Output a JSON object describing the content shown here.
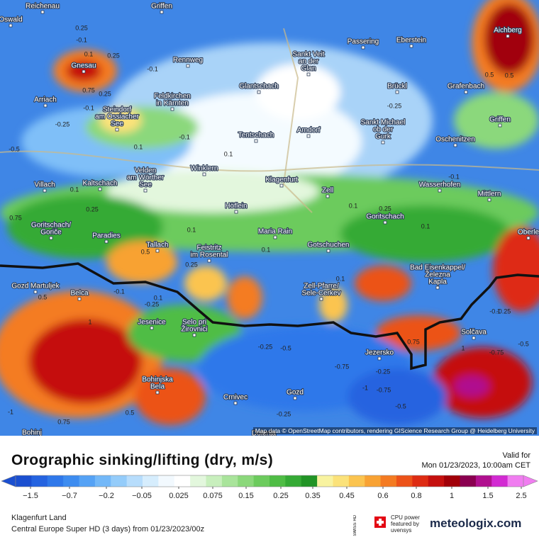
{
  "header": {
    "title": "Orographic sinking/lifting (dry, m/s)",
    "valid_label": "Valid for",
    "valid_time": "Mon 01/23/2023, 10:00am CET"
  },
  "footer": {
    "location": "Klagenfurt Land",
    "model": "Central Europe Super HD (3 days) from 01/23/2023/00z",
    "cpu": [
      "CPU power",
      "featured by",
      "uvensys"
    ],
    "swiss": "SWISS HD",
    "brand": "meteologix.com"
  },
  "attribution": "Map data © OpenStreetMap contributors, rendering GIScience Research Group @ Heidelberg University",
  "legend": {
    "labels": [
      "−1.5",
      "−0.7",
      "−0.2",
      "−0.05",
      "0.025",
      "0.075",
      "0.15",
      "0.25",
      "0.35",
      "0.45",
      "0.6",
      "0.8",
      "1",
      "1.5",
      "2.5"
    ],
    "colors": [
      "#1b4fd0",
      "#2563e0",
      "#2f78ea",
      "#3d8cf0",
      "#55a2f5",
      "#73b8f8",
      "#94ccfa",
      "#b7ddfc",
      "#d6edfd",
      "#f2f9fe",
      "#ffffff",
      "#e3f7dd",
      "#c8efbd",
      "#a9e49b",
      "#8bd87b",
      "#6ccb5d",
      "#4fbd45",
      "#35aa35",
      "#229426",
      "#f8f3a0",
      "#fbe27a",
      "#fbc44f",
      "#f8a233",
      "#f47b22",
      "#ec5219",
      "#de2c13",
      "#c5100e",
      "#a10008",
      "#8a0050",
      "#b0108f",
      "#d22ad2",
      "#f07df0"
    ]
  },
  "places": [
    [
      "Reichenau"
    ],
    [
      "Griffen"
    ],
    [
      "Oswald"
    ],
    [
      "Passering"
    ],
    [
      "Eberstein"
    ],
    [
      "Aichberg"
    ],
    [
      "Gnesau"
    ],
    [
      "Rennweg"
    ],
    [
      "Sankt Veit",
      "an der",
      "Glan"
    ],
    [
      "Glantschach"
    ],
    [
      "Brückl"
    ],
    [
      "Grafenbach"
    ],
    [
      "Arriach"
    ],
    [
      "Feldkirchen",
      "in Kärnten"
    ],
    [
      "Steindorf",
      "am Ossiacher",
      "See"
    ],
    [
      "Sankt Michael",
      "ob der",
      "Gurk"
    ],
    [
      "Griffen"
    ],
    [
      "Tentschach"
    ],
    [
      "Arndorf"
    ],
    [
      "Oschenitzen"
    ],
    [
      "Winklern"
    ],
    [
      "Velden",
      "am Wörther",
      "See"
    ],
    [
      "Kaltschach"
    ],
    [
      "Villach"
    ],
    [
      "Klagenfurt"
    ],
    [
      "Zell"
    ],
    [
      "Wasserhofen"
    ],
    [
      "Mittlern"
    ],
    [
      "Höflein"
    ],
    [
      "Goritschach"
    ],
    [
      "Goritschach/",
      "Goriče"
    ],
    [
      "Paradies"
    ],
    [
      "Maria Rain"
    ],
    [
      "Oberle"
    ],
    [
      "Tallach"
    ],
    [
      "Feistritz",
      "im Rosental"
    ],
    [
      "Gotschuchen"
    ],
    [
      "Bad Eisenkappel/",
      "Železna",
      "Kapla"
    ],
    [
      "Gozd Martuljek"
    ],
    [
      "Belca"
    ],
    [
      "Zell-Pfarre/",
      "Sele-Cerkev"
    ],
    [
      "Jesenice"
    ],
    [
      "Selo pri",
      "Žirovnici"
    ],
    [
      "Solčava"
    ],
    [
      "Jezersko"
    ],
    [
      "Bohinjska",
      "Bela"
    ],
    [
      "Crnivec"
    ],
    [
      "Gozd"
    ],
    [
      "Bohinj"
    ],
    [
      "Dolenja"
    ]
  ],
  "contour_labels": [
    "0.25",
    "-0.1",
    "0.1",
    "0.25",
    "-0.1",
    "0.75",
    "0.25",
    "-0.1",
    "-0.25",
    "-0.5",
    "0.1",
    "-0.1",
    "0.1",
    "0.5",
    "-0.25",
    "0.1",
    "0.75",
    "0.25",
    "0.1",
    "0.1",
    "0.1",
    "0.25",
    "0.5",
    "0.25",
    "0.1",
    "-0.1",
    "-0.25",
    "0.5",
    "0.1",
    "-0.25",
    "-0.5",
    "-0.75",
    "-1",
    "-0.75",
    "-0.25",
    "0.75",
    "0.5",
    "-0.1",
    "-0.25",
    "-0.75",
    "1",
    "-1",
    "0.5",
    "0.75",
    "-0.25",
    "-0.5",
    "1",
    "0.1",
    "-0.1",
    "-0.5"
  ]
}
